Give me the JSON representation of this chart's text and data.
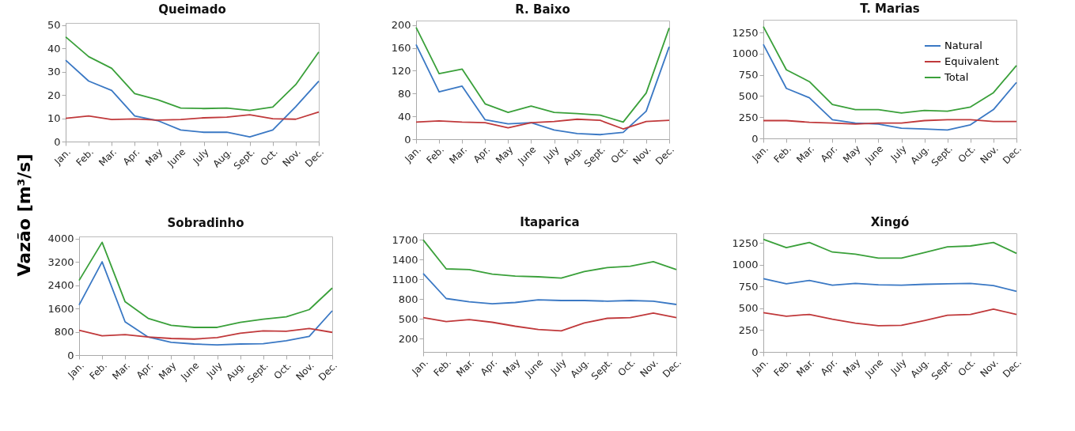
{
  "chart_data": [
    {
      "type": "line",
      "title": "Queimado",
      "ylabel": "Vazão [m³/s]",
      "categories": [
        "Jan.",
        "Feb.",
        "Mar.",
        "Apr.",
        "May",
        "June",
        "July",
        "Aug.",
        "Sept.",
        "Oct.",
        "Nov.",
        "Dec."
      ],
      "ylim": [
        0,
        51
      ],
      "yticks": [
        0,
        10,
        20,
        30,
        40,
        50
      ],
      "grid": false,
      "legend": false,
      "series": [
        {
          "color": "#3a78c4",
          "values": [
            35,
            26,
            22,
            11,
            9,
            5,
            4,
            4,
            2,
            5,
            15,
            26
          ]
        },
        {
          "color": "#c0393b",
          "values": [
            10,
            11,
            9.5,
            9.7,
            9.2,
            9.5,
            10.2,
            10.5,
            11.5,
            9.8,
            9.6,
            12.7
          ]
        },
        {
          "color": "#3aa03a",
          "values": [
            45,
            36.5,
            31.5,
            20.6,
            18,
            14.4,
            14.2,
            14.4,
            13.4,
            14.8,
            24.5,
            38.5
          ]
        }
      ]
    },
    {
      "type": "line",
      "title": "R. Baixo",
      "categories": [
        "Jan.",
        "Feb.",
        "Mar.",
        "Apr.",
        "May",
        "June",
        "July",
        "Aug.",
        "Sept.",
        "Oct.",
        "Nov.",
        "Dec."
      ],
      "ylim": [
        0,
        208
      ],
      "yticks": [
        0,
        40,
        80,
        120,
        160,
        200
      ],
      "grid": false,
      "legend": false,
      "series": [
        {
          "color": "#3a78c4",
          "values": [
            166,
            83,
            93,
            34,
            27,
            29,
            16,
            10,
            8,
            12,
            49,
            162
          ]
        },
        {
          "color": "#c0393b",
          "values": [
            30,
            32,
            30,
            29,
            20,
            29,
            31,
            35,
            33,
            18,
            31,
            33
          ]
        },
        {
          "color": "#3aa03a",
          "values": [
            196,
            115,
            123,
            62,
            47,
            58,
            47,
            45,
            42,
            30,
            81,
            195
          ]
        }
      ]
    },
    {
      "type": "line",
      "title": "T. Marias",
      "categories": [
        "Jan.",
        "Feb.",
        "Mar.",
        "Apr.",
        "May",
        "June",
        "July",
        "Aug.",
        "Sept.",
        "Oct.",
        "Nov.",
        "Dec."
      ],
      "ylim": [
        0,
        1400
      ],
      "yticks": [
        0,
        250,
        500,
        750,
        1000,
        1250
      ],
      "grid": false,
      "legend": "top right",
      "series": [
        {
          "name": "Natural",
          "color": "#3a78c4",
          "values": [
            1110,
            590,
            480,
            220,
            180,
            170,
            120,
            110,
            100,
            160,
            340,
            660
          ]
        },
        {
          "name": "Equivalent",
          "color": "#c0393b",
          "values": [
            210,
            210,
            190,
            180,
            170,
            180,
            180,
            210,
            220,
            220,
            200,
            200
          ]
        },
        {
          "name": "Total",
          "color": "#3aa03a",
          "values": [
            1320,
            810,
            670,
            400,
            340,
            340,
            300,
            330,
            320,
            370,
            540,
            860
          ]
        }
      ]
    },
    {
      "type": "line",
      "title": "Sobradinho",
      "categories": [
        "Jan.",
        "Feb.",
        "Mar.",
        "Apr.",
        "May",
        "June",
        "July",
        "Aug.",
        "Sept.",
        "Oct.",
        "Nov.",
        "Dec."
      ],
      "ylim": [
        0,
        4070
      ],
      "yticks": [
        0,
        800,
        1600,
        2400,
        3200,
        4000
      ],
      "grid": false,
      "legend": false,
      "series": [
        {
          "color": "#3a78c4",
          "values": [
            1720,
            3200,
            1140,
            620,
            440,
            380,
            350,
            380,
            390,
            490,
            640,
            1520
          ]
        },
        {
          "color": "#c0393b",
          "values": [
            850,
            660,
            700,
            620,
            570,
            550,
            600,
            750,
            830,
            820,
            910,
            780
          ]
        },
        {
          "color": "#3aa03a",
          "values": [
            2560,
            3870,
            1830,
            1260,
            1020,
            950,
            950,
            1120,
            1230,
            1310,
            1560,
            2300
          ]
        }
      ]
    },
    {
      "type": "line",
      "title": "Itaparica",
      "categories": [
        "Jan.",
        "Feb.",
        "Mar.",
        "Apr.",
        "May",
        "June",
        "July",
        "Aug.",
        "Sept.",
        "Oct.",
        "Nov.",
        "Dec."
      ],
      "ylim": [
        0,
        1800
      ],
      "yticks": [
        200,
        500,
        800,
        1100,
        1400,
        1700
      ],
      "grid": false,
      "legend": false,
      "series": [
        {
          "color": "#3a78c4",
          "values": [
            1190,
            810,
            760,
            730,
            750,
            790,
            780,
            780,
            770,
            780,
            770,
            720
          ]
        },
        {
          "color": "#c0393b",
          "values": [
            520,
            460,
            490,
            450,
            390,
            340,
            320,
            440,
            510,
            520,
            590,
            520
          ]
        },
        {
          "color": "#3aa03a",
          "values": [
            1700,
            1260,
            1250,
            1180,
            1150,
            1140,
            1120,
            1220,
            1280,
            1300,
            1370,
            1250
          ]
        }
      ]
    },
    {
      "type": "line",
      "title": "Xingó",
      "categories": [
        "Jan.",
        "Feb.",
        "Mar.",
        "Apr.",
        "May",
        "June",
        "July",
        "Aug.",
        "Sept.",
        "Oct.",
        "Nov.",
        "Dec."
      ],
      "ylim": [
        0,
        1360
      ],
      "yticks": [
        0,
        250,
        500,
        750,
        1000,
        1250
      ],
      "grid": false,
      "legend": false,
      "series": [
        {
          "color": "#3a78c4",
          "values": [
            840,
            780,
            820,
            765,
            785,
            770,
            765,
            775,
            780,
            785,
            760,
            695
          ]
        },
        {
          "color": "#c0393b",
          "values": [
            450,
            410,
            430,
            375,
            330,
            300,
            305,
            360,
            420,
            430,
            490,
            430
          ]
        },
        {
          "color": "#3aa03a",
          "values": [
            1290,
            1195,
            1255,
            1145,
            1120,
            1075,
            1075,
            1140,
            1205,
            1215,
            1255,
            1130
          ]
        }
      ]
    }
  ]
}
